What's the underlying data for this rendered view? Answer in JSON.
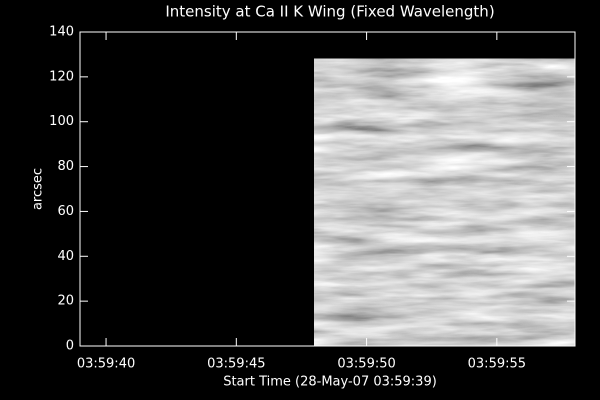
{
  "chart_data": {
    "type": "image",
    "title": "Intensity at Ca II K Wing (Fixed Wavelength)",
    "x_label": "Start Time (28-May-07 03:59:39)",
    "y_label": "arcsec",
    "xlim": [
      39,
      58
    ],
    "xticks": [
      {
        "value": 40,
        "label": "03:59:40"
      },
      {
        "value": 45,
        "label": "03:59:45"
      },
      {
        "value": 50,
        "label": "03:59:50"
      },
      {
        "value": 55,
        "label": "03:59:55"
      }
    ],
    "ylim": [
      0,
      140
    ],
    "yticks": [
      0,
      20,
      40,
      60,
      80,
      100,
      120,
      140
    ],
    "image_extent": {
      "x": [
        48,
        58
      ],
      "y": [
        0,
        128
      ]
    },
    "colormap": "gray"
  }
}
